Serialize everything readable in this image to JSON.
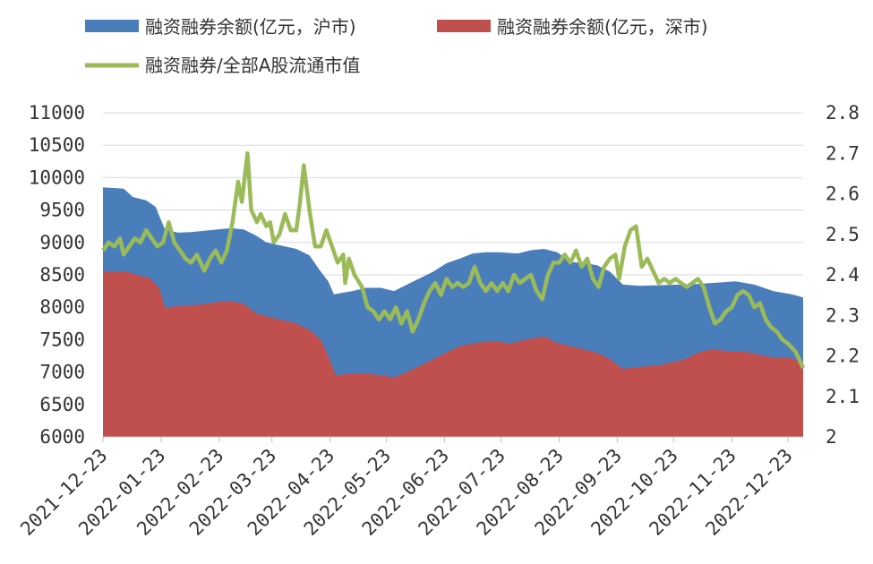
{
  "chart_data": {
    "type": "area",
    "x_start": "2021-12-23",
    "x_end": "2022-12-31",
    "x_ticks": [
      "2021-12-23",
      "2022-01-23",
      "2022-02-23",
      "2022-03-23",
      "2022-04-23",
      "2022-05-23",
      "2022-06-23",
      "2022-07-23",
      "2022-08-23",
      "2022-09-23",
      "2022-10-23",
      "2022-11-23",
      "2022-12-23"
    ],
    "y_left": {
      "ylim": [
        6000,
        11000
      ],
      "ticks": [
        "11000",
        "10500",
        "10000",
        "9500",
        "9000",
        "8500",
        "8000",
        "7500",
        "7000",
        "6500",
        "6000"
      ]
    },
    "y_right": {
      "ylim": [
        2.0,
        2.8
      ],
      "ticks": [
        "2.8",
        "2.7",
        "2.6",
        "2.5",
        "2.4",
        "2.3",
        "2.2",
        "2.1",
        "2"
      ]
    },
    "series": [
      {
        "name": "融资融券余额(亿元，沪市)",
        "axis": "left",
        "color": "#4a7ebb",
        "points": [
          [
            "2021-12-23",
            9850
          ],
          [
            "2022-01-03",
            9830
          ],
          [
            "2022-01-08",
            9700
          ],
          [
            "2022-01-15",
            9650
          ],
          [
            "2022-01-20",
            9550
          ],
          [
            "2022-01-25",
            9200
          ],
          [
            "2022-02-01",
            9150
          ],
          [
            "2022-02-08",
            9160
          ],
          [
            "2022-02-15",
            9180
          ],
          [
            "2022-02-22",
            9200
          ],
          [
            "2022-03-01",
            9220
          ],
          [
            "2022-03-08",
            9200
          ],
          [
            "2022-03-15",
            9100
          ],
          [
            "2022-03-20",
            9000
          ],
          [
            "2022-03-28",
            8950
          ],
          [
            "2022-04-05",
            8900
          ],
          [
            "2022-04-12",
            8800
          ],
          [
            "2022-04-18",
            8550
          ],
          [
            "2022-04-22",
            8400
          ],
          [
            "2022-04-25",
            8200
          ],
          [
            "2022-05-05",
            8250
          ],
          [
            "2022-05-12",
            8300
          ],
          [
            "2022-05-20",
            8300
          ],
          [
            "2022-05-27",
            8250
          ],
          [
            "2022-06-03",
            8350
          ],
          [
            "2022-06-10",
            8450
          ],
          [
            "2022-06-17",
            8550
          ],
          [
            "2022-06-24",
            8680
          ],
          [
            "2022-07-01",
            8750
          ],
          [
            "2022-07-08",
            8830
          ],
          [
            "2022-07-15",
            8850
          ],
          [
            "2022-07-22",
            8850
          ],
          [
            "2022-08-01",
            8830
          ],
          [
            "2022-08-08",
            8880
          ],
          [
            "2022-08-15",
            8900
          ],
          [
            "2022-08-22",
            8850
          ],
          [
            "2022-08-29",
            8700
          ],
          [
            "2022-09-05",
            8680
          ],
          [
            "2022-09-12",
            8650
          ],
          [
            "2022-09-19",
            8550
          ],
          [
            "2022-09-26",
            8350
          ],
          [
            "2022-10-05",
            8330
          ],
          [
            "2022-10-15",
            8340
          ],
          [
            "2022-10-25",
            8350
          ],
          [
            "2022-11-05",
            8360
          ],
          [
            "2022-11-15",
            8380
          ],
          [
            "2022-11-25",
            8400
          ],
          [
            "2022-12-05",
            8350
          ],
          [
            "2022-12-15",
            8250
          ],
          [
            "2022-12-25",
            8200
          ],
          [
            "2022-12-31",
            8150
          ]
        ]
      },
      {
        "name": "融资融券余额(亿元，深市)",
        "axis": "left",
        "color": "#c0504d",
        "points": [
          [
            "2021-12-23",
            8550
          ],
          [
            "2022-01-05",
            8550
          ],
          [
            "2022-01-10",
            8500
          ],
          [
            "2022-01-17",
            8450
          ],
          [
            "2022-01-22",
            8300
          ],
          [
            "2022-01-25",
            8000
          ],
          [
            "2022-02-08",
            8030
          ],
          [
            "2022-02-15",
            8050
          ],
          [
            "2022-02-22",
            8080
          ],
          [
            "2022-03-01",
            8100
          ],
          [
            "2022-03-08",
            8050
          ],
          [
            "2022-03-15",
            7900
          ],
          [
            "2022-03-22",
            7850
          ],
          [
            "2022-03-29",
            7800
          ],
          [
            "2022-04-05",
            7750
          ],
          [
            "2022-04-12",
            7650
          ],
          [
            "2022-04-18",
            7500
          ],
          [
            "2022-04-22",
            7250
          ],
          [
            "2022-04-26",
            6950
          ],
          [
            "2022-05-05",
            6980
          ],
          [
            "2022-05-12",
            6980
          ],
          [
            "2022-05-20",
            6950
          ],
          [
            "2022-05-27",
            6920
          ],
          [
            "2022-06-03",
            7000
          ],
          [
            "2022-06-10",
            7100
          ],
          [
            "2022-06-17",
            7200
          ],
          [
            "2022-06-24",
            7300
          ],
          [
            "2022-07-01",
            7400
          ],
          [
            "2022-07-10",
            7450
          ],
          [
            "2022-07-20",
            7480
          ],
          [
            "2022-07-28",
            7440
          ],
          [
            "2022-08-05",
            7500
          ],
          [
            "2022-08-15",
            7550
          ],
          [
            "2022-08-22",
            7450
          ],
          [
            "2022-08-29",
            7400
          ],
          [
            "2022-09-05",
            7350
          ],
          [
            "2022-09-12",
            7300
          ],
          [
            "2022-09-19",
            7200
          ],
          [
            "2022-09-26",
            7050
          ],
          [
            "2022-10-05",
            7080
          ],
          [
            "2022-10-15",
            7100
          ],
          [
            "2022-10-22",
            7150
          ],
          [
            "2022-10-29",
            7200
          ],
          [
            "2022-11-05",
            7300
          ],
          [
            "2022-11-12",
            7350
          ],
          [
            "2022-11-19",
            7330
          ],
          [
            "2022-11-26",
            7320
          ],
          [
            "2022-12-03",
            7300
          ],
          [
            "2022-12-10",
            7250
          ],
          [
            "2022-12-17",
            7220
          ],
          [
            "2022-12-24",
            7220
          ],
          [
            "2022-12-31",
            7150
          ]
        ]
      },
      {
        "name": "融资融券/全部A股流通市值",
        "axis": "right",
        "type": "line",
        "color": "#9bbb59",
        "points": [
          [
            "2021-12-23",
            2.46
          ],
          [
            "2021-12-26",
            2.48
          ],
          [
            "2021-12-29",
            2.47
          ],
          [
            "2022-01-01",
            2.49
          ],
          [
            "2022-01-03",
            2.45
          ],
          [
            "2022-01-06",
            2.47
          ],
          [
            "2022-01-09",
            2.49
          ],
          [
            "2022-01-12",
            2.48
          ],
          [
            "2022-01-15",
            2.51
          ],
          [
            "2022-01-18",
            2.49
          ],
          [
            "2022-01-21",
            2.47
          ],
          [
            "2022-01-24",
            2.48
          ],
          [
            "2022-01-27",
            2.53
          ],
          [
            "2022-01-30",
            2.48
          ],
          [
            "2022-02-02",
            2.46
          ],
          [
            "2022-02-05",
            2.44
          ],
          [
            "2022-02-08",
            2.43
          ],
          [
            "2022-02-11",
            2.45
          ],
          [
            "2022-02-13",
            2.43
          ],
          [
            "2022-02-15",
            2.41
          ],
          [
            "2022-02-18",
            2.44
          ],
          [
            "2022-02-21",
            2.46
          ],
          [
            "2022-02-24",
            2.43
          ],
          [
            "2022-02-27",
            2.46
          ],
          [
            "2022-03-02",
            2.53
          ],
          [
            "2022-03-05",
            2.63
          ],
          [
            "2022-03-07",
            2.58
          ],
          [
            "2022-03-10",
            2.7
          ],
          [
            "2022-03-12",
            2.56
          ],
          [
            "2022-03-15",
            2.53
          ],
          [
            "2022-03-17",
            2.55
          ],
          [
            "2022-03-20",
            2.52
          ],
          [
            "2022-03-22",
            2.53
          ],
          [
            "2022-03-24",
            2.48
          ],
          [
            "2022-03-27",
            2.5
          ],
          [
            "2022-03-30",
            2.55
          ],
          [
            "2022-04-02",
            2.51
          ],
          [
            "2022-04-05",
            2.51
          ],
          [
            "2022-04-07",
            2.58
          ],
          [
            "2022-04-09",
            2.67
          ],
          [
            "2022-04-12",
            2.56
          ],
          [
            "2022-04-15",
            2.47
          ],
          [
            "2022-04-18",
            2.47
          ],
          [
            "2022-04-21",
            2.51
          ],
          [
            "2022-04-24",
            2.47
          ],
          [
            "2022-04-27",
            2.43
          ],
          [
            "2022-04-30",
            2.45
          ],
          [
            "2022-05-01",
            2.38
          ],
          [
            "2022-05-03",
            2.44
          ],
          [
            "2022-05-06",
            2.4
          ],
          [
            "2022-05-10",
            2.37
          ],
          [
            "2022-05-13",
            2.32
          ],
          [
            "2022-05-16",
            2.31
          ],
          [
            "2022-05-19",
            2.29
          ],
          [
            "2022-05-22",
            2.31
          ],
          [
            "2022-05-25",
            2.29
          ],
          [
            "2022-05-28",
            2.32
          ],
          [
            "2022-05-31",
            2.28
          ],
          [
            "2022-06-03",
            2.31
          ],
          [
            "2022-06-06",
            2.26
          ],
          [
            "2022-06-09",
            2.29
          ],
          [
            "2022-06-12",
            2.33
          ],
          [
            "2022-06-15",
            2.36
          ],
          [
            "2022-06-18",
            2.38
          ],
          [
            "2022-06-21",
            2.35
          ],
          [
            "2022-06-24",
            2.39
          ],
          [
            "2022-06-27",
            2.37
          ],
          [
            "2022-06-30",
            2.38
          ],
          [
            "2022-07-03",
            2.37
          ],
          [
            "2022-07-06",
            2.38
          ],
          [
            "2022-07-09",
            2.42
          ],
          [
            "2022-07-12",
            2.38
          ],
          [
            "2022-07-15",
            2.36
          ],
          [
            "2022-07-18",
            2.38
          ],
          [
            "2022-07-21",
            2.36
          ],
          [
            "2022-07-24",
            2.38
          ],
          [
            "2022-07-27",
            2.36
          ],
          [
            "2022-07-30",
            2.4
          ],
          [
            "2022-08-02",
            2.38
          ],
          [
            "2022-08-05",
            2.39
          ],
          [
            "2022-08-08",
            2.4
          ],
          [
            "2022-08-11",
            2.36
          ],
          [
            "2022-08-14",
            2.34
          ],
          [
            "2022-08-17",
            2.4
          ],
          [
            "2022-08-20",
            2.43
          ],
          [
            "2022-08-23",
            2.43
          ],
          [
            "2022-08-26",
            2.45
          ],
          [
            "2022-08-29",
            2.43
          ],
          [
            "2022-09-01",
            2.46
          ],
          [
            "2022-09-04",
            2.42
          ],
          [
            "2022-09-07",
            2.44
          ],
          [
            "2022-09-10",
            2.39
          ],
          [
            "2022-09-13",
            2.37
          ],
          [
            "2022-09-16",
            2.42
          ],
          [
            "2022-09-19",
            2.44
          ],
          [
            "2022-09-22",
            2.45
          ],
          [
            "2022-09-24",
            2.39
          ],
          [
            "2022-09-27",
            2.47
          ],
          [
            "2022-09-30",
            2.51
          ],
          [
            "2022-10-03",
            2.52
          ],
          [
            "2022-10-06",
            2.42
          ],
          [
            "2022-10-09",
            2.44
          ],
          [
            "2022-10-12",
            2.41
          ],
          [
            "2022-10-15",
            2.38
          ],
          [
            "2022-10-18",
            2.39
          ],
          [
            "2022-10-21",
            2.38
          ],
          [
            "2022-10-24",
            2.39
          ],
          [
            "2022-10-27",
            2.38
          ],
          [
            "2022-10-30",
            2.37
          ],
          [
            "2022-11-02",
            2.38
          ],
          [
            "2022-11-05",
            2.39
          ],
          [
            "2022-11-08",
            2.37
          ],
          [
            "2022-11-11",
            2.32
          ],
          [
            "2022-11-14",
            2.28
          ],
          [
            "2022-11-17",
            2.29
          ],
          [
            "2022-11-20",
            2.31
          ],
          [
            "2022-11-23",
            2.32
          ],
          [
            "2022-11-26",
            2.35
          ],
          [
            "2022-11-29",
            2.36
          ],
          [
            "2022-12-02",
            2.35
          ],
          [
            "2022-12-05",
            2.32
          ],
          [
            "2022-12-08",
            2.33
          ],
          [
            "2022-12-11",
            2.29
          ],
          [
            "2022-12-14",
            2.27
          ],
          [
            "2022-12-17",
            2.26
          ],
          [
            "2022-12-20",
            2.24
          ],
          [
            "2022-12-23",
            2.23
          ],
          [
            "2022-12-27",
            2.21
          ],
          [
            "2022-12-31",
            2.17
          ]
        ]
      }
    ],
    "legend_position": "top",
    "grid": "horizontal"
  }
}
